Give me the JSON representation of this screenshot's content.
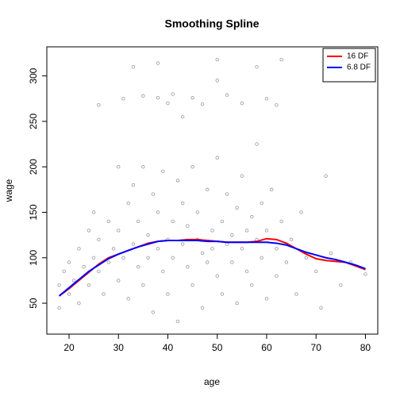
{
  "chart_data": {
    "type": "scatter",
    "title": "Smoothing Spline",
    "x_label": "age",
    "y_label": "wage",
    "xlim": [
      15.5,
      82.5
    ],
    "ylim": [
      16,
      332
    ],
    "xticks": [
      20,
      30,
      40,
      50,
      60,
      70,
      80
    ],
    "yticks": [
      50,
      100,
      150,
      200,
      250,
      300
    ],
    "legend": "top-right",
    "points": {
      "color": "#999999",
      "x": [
        18,
        18,
        19,
        20,
        20,
        21,
        22,
        22,
        23,
        24,
        24,
        25,
        25,
        26,
        26,
        27,
        28,
        28,
        29,
        30,
        30,
        30,
        31,
        32,
        32,
        33,
        33,
        34,
        34,
        35,
        35,
        36,
        36,
        37,
        37,
        38,
        38,
        39,
        39,
        40,
        40,
        41,
        41,
        42,
        42,
        43,
        43,
        44,
        44,
        45,
        45,
        46,
        46,
        47,
        47,
        48,
        48,
        49,
        49,
        50,
        50,
        51,
        51,
        52,
        52,
        53,
        53,
        54,
        54,
        55,
        55,
        56,
        56,
        57,
        57,
        58,
        58,
        59,
        59,
        60,
        60,
        61,
        62,
        62,
        63,
        64,
        65,
        66,
        67,
        68,
        70,
        71,
        72,
        73,
        75,
        77,
        80,
        26,
        31,
        33,
        35,
        38,
        40,
        41,
        43,
        45,
        47,
        50,
        52,
        55,
        58,
        60,
        62,
        63,
        50,
        38
      ],
      "values": [
        70,
        45,
        85,
        60,
        95,
        75,
        110,
        50,
        90,
        130,
        70,
        100,
        150,
        85,
        120,
        60,
        140,
        95,
        110,
        200,
        75,
        130,
        100,
        160,
        55,
        115,
        180,
        90,
        140,
        200,
        70,
        125,
        100,
        170,
        40,
        110,
        150,
        195,
        85,
        120,
        60,
        140,
        100,
        185,
        30,
        115,
        160,
        90,
        135,
        200,
        70,
        120,
        150,
        105,
        45,
        175,
        95,
        130,
        110,
        210,
        80,
        140,
        60,
        115,
        170,
        95,
        125,
        155,
        50,
        110,
        190,
        85,
        130,
        145,
        70,
        120,
        225,
        100,
        160,
        130,
        55,
        175,
        110,
        80,
        140,
        95,
        120,
        60,
        150,
        100,
        85,
        45,
        190,
        105,
        70,
        95,
        82,
        268,
        275,
        310,
        278,
        314,
        270,
        280,
        255,
        276,
        269,
        318,
        279,
        270,
        310,
        275,
        268,
        318,
        295,
        276
      ]
    },
    "line_x": [
      18,
      20,
      22,
      24,
      26,
      28,
      30,
      32,
      34,
      36,
      38,
      40,
      42,
      44,
      46,
      48,
      50,
      52,
      54,
      56,
      58,
      60,
      62,
      64,
      66,
      68,
      70,
      72,
      74,
      76,
      78,
      80
    ],
    "series": [
      {
        "name": "16 DF",
        "color": "#ff0000",
        "values": [
          58,
          66,
          75,
          84,
          93,
          100,
          104,
          108,
          112,
          116,
          118,
          119,
          119,
          120,
          120,
          119,
          118,
          117,
          117,
          117,
          118,
          121,
          120,
          116,
          110,
          104,
          99,
          97,
          96,
          95,
          91,
          87
        ]
      },
      {
        "name": "6.8 DF",
        "color": "#0000ff",
        "values": [
          58,
          67,
          76,
          85,
          92,
          99,
          104,
          108,
          112,
          115,
          118,
          119,
          119,
          119,
          119,
          118,
          118,
          117,
          117,
          117,
          117,
          117,
          116,
          114,
          110,
          106,
          103,
          100,
          98,
          95,
          92,
          88
        ]
      }
    ]
  }
}
